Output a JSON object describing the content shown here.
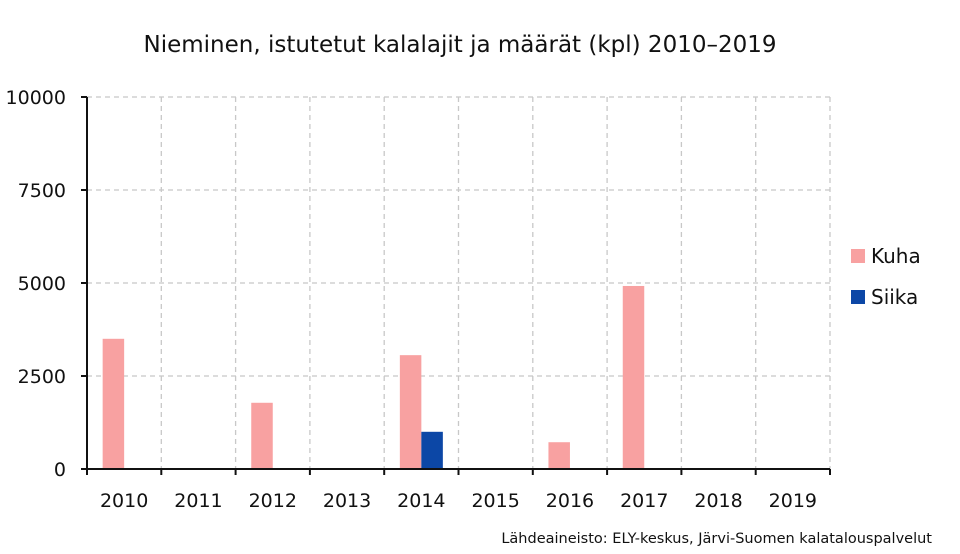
{
  "chart_data": {
    "type": "bar",
    "title": "Nieminen, istutetut kalalajit ja määrät (kpl) 2010–2019",
    "xlabel": "",
    "ylabel": "",
    "categories": [
      "2010",
      "2011",
      "2012",
      "2013",
      "2014",
      "2015",
      "2016",
      "2017",
      "2018",
      "2019"
    ],
    "series": [
      {
        "name": "Kuha",
        "color": "#f8a1a1",
        "values": [
          3500,
          0,
          1780,
          0,
          3060,
          0,
          720,
          4920,
          0,
          0
        ]
      },
      {
        "name": "Siika",
        "color": "#0c47a6",
        "values": [
          0,
          0,
          0,
          0,
          1000,
          0,
          0,
          0,
          0,
          0
        ]
      }
    ],
    "ylim": [
      0,
      10000
    ],
    "yticks": [
      "0",
      "2500",
      "5000",
      "7500",
      "10000"
    ],
    "grid": true,
    "legend_position": "right",
    "source": "Lähdeaineisto: ELY-keskus, Järvi-Suomen kalatalouspalvelut"
  }
}
